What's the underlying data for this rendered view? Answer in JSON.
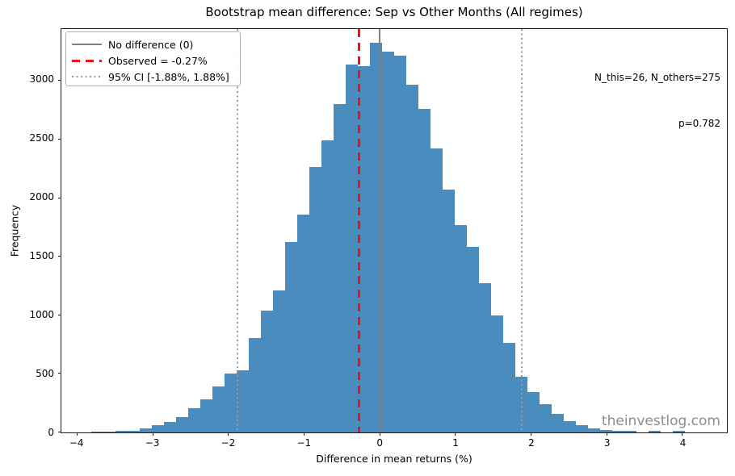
{
  "title": "Bootstrap mean difference: Sep vs Other Months (All regimes)",
  "annotation": {
    "line1": "N_this=26, N_others=275",
    "line2": "p=0.782"
  },
  "watermark": "theinvestlog.com",
  "legend": {
    "items": [
      {
        "label": "No difference (0)",
        "style": "solid",
        "color": "#808080",
        "thickness": 2
      },
      {
        "label": "Observed = -0.27%",
        "style": "dashed",
        "color": "#f50f0f",
        "thickness": 3
      },
      {
        "label": "95% CI [-1.88%, 1.88%]",
        "style": "dotted",
        "color": "#9a9a9a",
        "thickness": 2
      }
    ]
  },
  "chart_data": {
    "type": "bar",
    "subtype": "histogram",
    "title": "Bootstrap mean difference: Sep vs Other Months (All regimes)",
    "xlabel": "Difference in mean returns (%)",
    "ylabel": "Frequency",
    "bar_color": "#4a8cbe",
    "xlim": [
      -4.21,
      4.59
    ],
    "ylim": [
      0,
      3440
    ],
    "x_ticks": [
      -4,
      -3,
      -2,
      -1,
      0,
      1,
      2,
      3,
      4
    ],
    "y_ticks": [
      0,
      500,
      1000,
      1500,
      2000,
      2500,
      3000
    ],
    "grid": false,
    "legend_position": "upper-left",
    "bin_start": -3.81,
    "bin_width": 0.16,
    "frequencies": [
      4,
      5,
      7,
      12,
      30,
      58,
      87,
      128,
      204,
      277,
      390,
      500,
      530,
      800,
      1035,
      1210,
      1625,
      1855,
      2260,
      2490,
      2800,
      3140,
      3120,
      3320,
      3250,
      3210,
      2965,
      2760,
      2420,
      2070,
      1765,
      1580,
      1270,
      995,
      760,
      470,
      342,
      239,
      154,
      95,
      60,
      33,
      17,
      8,
      7,
      0,
      8,
      0,
      7,
      0
    ],
    "vlines": [
      {
        "name": "no-difference-line",
        "x": 0,
        "style": "solid",
        "color": "#808080",
        "width": 2
      },
      {
        "name": "observed-line",
        "x": -0.27,
        "style": "dashed",
        "color": "#f50f0f",
        "width": 3
      },
      {
        "name": "ci-lower-line",
        "x": -1.88,
        "style": "dotted",
        "color": "#9a9a9a",
        "width": 2
      },
      {
        "name": "ci-upper-line",
        "x": 1.88,
        "style": "dotted",
        "color": "#9a9a9a",
        "width": 2
      }
    ],
    "stats": {
      "observed_diff_pct": -0.27,
      "ci_95_pct": [
        -1.88,
        1.88
      ],
      "p_value": 0.782,
      "n_this": 26,
      "n_others": 275
    }
  }
}
